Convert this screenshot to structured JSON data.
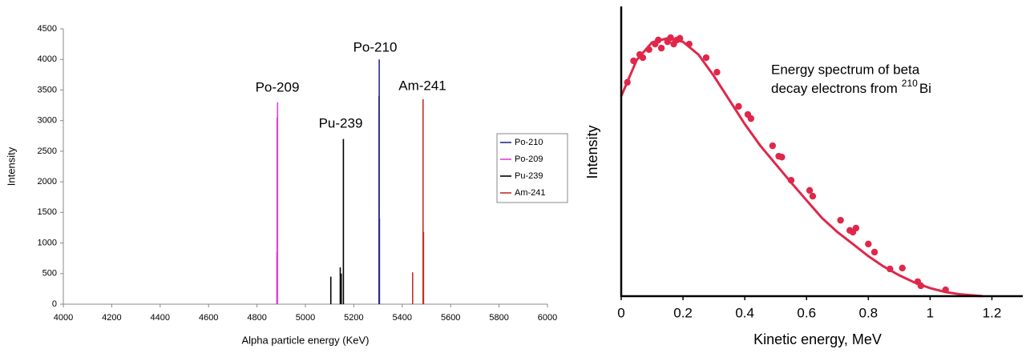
{
  "chart_data": [
    {
      "type": "spike",
      "xlabel": "Alpha particle energy (KeV)",
      "ylabel": "Intensity",
      "xlim": [
        4000,
        6000
      ],
      "xticks": [
        4000,
        4200,
        4400,
        4600,
        4800,
        5000,
        5200,
        5400,
        5600,
        5800,
        6000
      ],
      "ylim": [
        0,
        4500
      ],
      "yticks": [
        0,
        500,
        1000,
        1500,
        2000,
        2500,
        3000,
        3500,
        4000,
        4500
      ],
      "annotations": [
        "Po-209",
        "Pu-239",
        "Po-210",
        "Am-241"
      ],
      "series": [
        {
          "name": "Po-210",
          "color": "#2b2b8c",
          "x": [
            5304,
            5305,
            5306
          ],
          "values": [
            3400,
            4000,
            1400
          ]
        },
        {
          "name": "Po-209",
          "color": "#e040e0",
          "x": [
            4882,
            4883,
            4885
          ],
          "values": [
            850,
            3050,
            3300
          ]
        },
        {
          "name": "Pu-239",
          "color": "#000000",
          "x": [
            5105,
            5144,
            5148,
            5157
          ],
          "values": [
            450,
            600,
            500,
            2700
          ]
        },
        {
          "name": "Am-241",
          "color": "#c0302a",
          "x": [
            5443,
            5486,
            5488
          ],
          "values": [
            520,
            3350,
            1180
          ]
        }
      ]
    },
    {
      "type": "scatter",
      "xlabel": "Kinetic energy, MeV",
      "ylabel": "Intensity",
      "annotation": {
        "lines": [
          "Energy spectrum of beta",
          "decay electrons from"
        ],
        "sup": "210",
        "after": "Bi"
      },
      "color": "#e0274a",
      "xlim": [
        0,
        1.3
      ],
      "xticks": [
        0,
        0.2,
        0.4,
        0.6,
        0.8,
        1,
        1.2
      ],
      "ylim": [
        0,
        1
      ],
      "points": {
        "x": [
          0.02,
          0.04,
          0.06,
          0.07,
          0.09,
          0.11,
          0.12,
          0.13,
          0.15,
          0.16,
          0.17,
          0.18,
          0.19,
          0.22,
          0.275,
          0.31,
          0.38,
          0.41,
          0.42,
          0.49,
          0.51,
          0.52,
          0.55,
          0.61,
          0.62,
          0.71,
          0.74,
          0.75,
          0.76,
          0.8,
          0.82,
          0.87,
          0.91,
          0.96,
          0.97,
          1.05
        ],
        "values": [
          0.738,
          0.812,
          0.834,
          0.823,
          0.851,
          0.87,
          0.884,
          0.856,
          0.878,
          0.892,
          0.87,
          0.884,
          0.89,
          0.87,
          0.823,
          0.773,
          0.655,
          0.627,
          0.613,
          0.519,
          0.483,
          0.48,
          0.4,
          0.365,
          0.345,
          0.262,
          0.227,
          0.221,
          0.235,
          0.18,
          0.152,
          0.094,
          0.097,
          0.05,
          0.036,
          0.022
        ]
      },
      "fit": {
        "x": [
          0,
          0.05,
          0.1,
          0.15,
          0.2,
          0.25,
          0.3,
          0.35,
          0.4,
          0.45,
          0.5,
          0.55,
          0.6,
          0.65,
          0.7,
          0.75,
          0.8,
          0.85,
          0.9,
          0.95,
          1,
          1.05,
          1.1,
          1.17
        ],
        "values": [
          0.69,
          0.815,
          0.876,
          0.89,
          0.878,
          0.834,
          0.76,
          0.677,
          0.594,
          0.52,
          0.456,
          0.392,
          0.331,
          0.27,
          0.221,
          0.18,
          0.138,
          0.102,
          0.072,
          0.047,
          0.028,
          0.014,
          0.006,
          0
        ]
      }
    }
  ]
}
